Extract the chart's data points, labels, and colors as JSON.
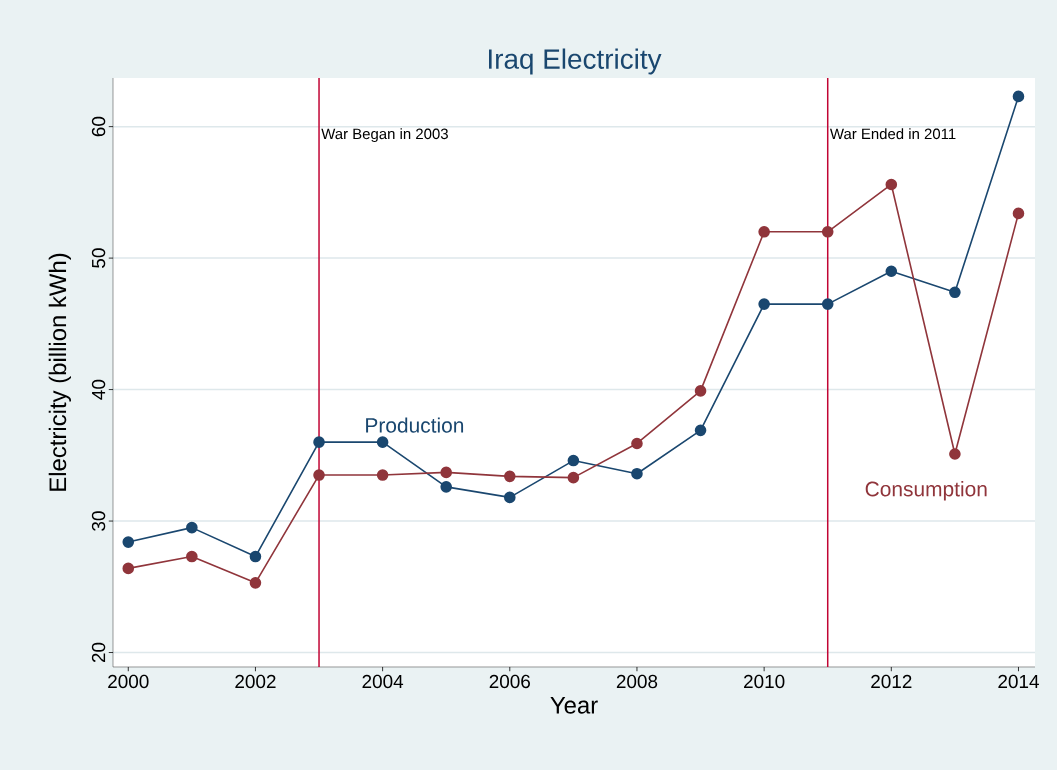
{
  "chart_data": {
    "type": "line",
    "title": "Iraq Electricity",
    "xlabel": "Year",
    "ylabel": "Electricity (billion kWh)",
    "x": [
      2000,
      2001,
      2002,
      2003,
      2004,
      2005,
      2006,
      2007,
      2008,
      2009,
      2010,
      2011,
      2012,
      2013,
      2014
    ],
    "series": [
      {
        "name": "Production",
        "color": "#1a476f",
        "values": [
          28.4,
          29.5,
          27.3,
          36.0,
          36.0,
          32.6,
          31.8,
          34.6,
          33.6,
          36.9,
          46.5,
          46.5,
          49.0,
          47.4,
          62.3
        ]
      },
      {
        "name": "Consumption",
        "color": "#90353b",
        "values": [
          26.4,
          27.3,
          25.3,
          33.5,
          33.5,
          33.7,
          33.4,
          33.3,
          35.9,
          39.9,
          52.0,
          52.0,
          55.6,
          35.1,
          53.4
        ]
      }
    ],
    "ref_lines": [
      {
        "axis": "x",
        "value": 2003,
        "label": "War Began in 2003",
        "color": "#c10534"
      },
      {
        "axis": "x",
        "value": 2011,
        "label": "War Ended in 2011",
        "color": "#c10534"
      }
    ],
    "xlim": [
      1999.76,
      2014.26
    ],
    "ylim": [
      18.9,
      63.7
    ],
    "xticks": [
      2000,
      2002,
      2004,
      2006,
      2008,
      2010,
      2012,
      2014
    ],
    "yticks": [
      20,
      30,
      40,
      50,
      60
    ],
    "grid": "y",
    "marker": "circle",
    "line_style": "solid"
  }
}
